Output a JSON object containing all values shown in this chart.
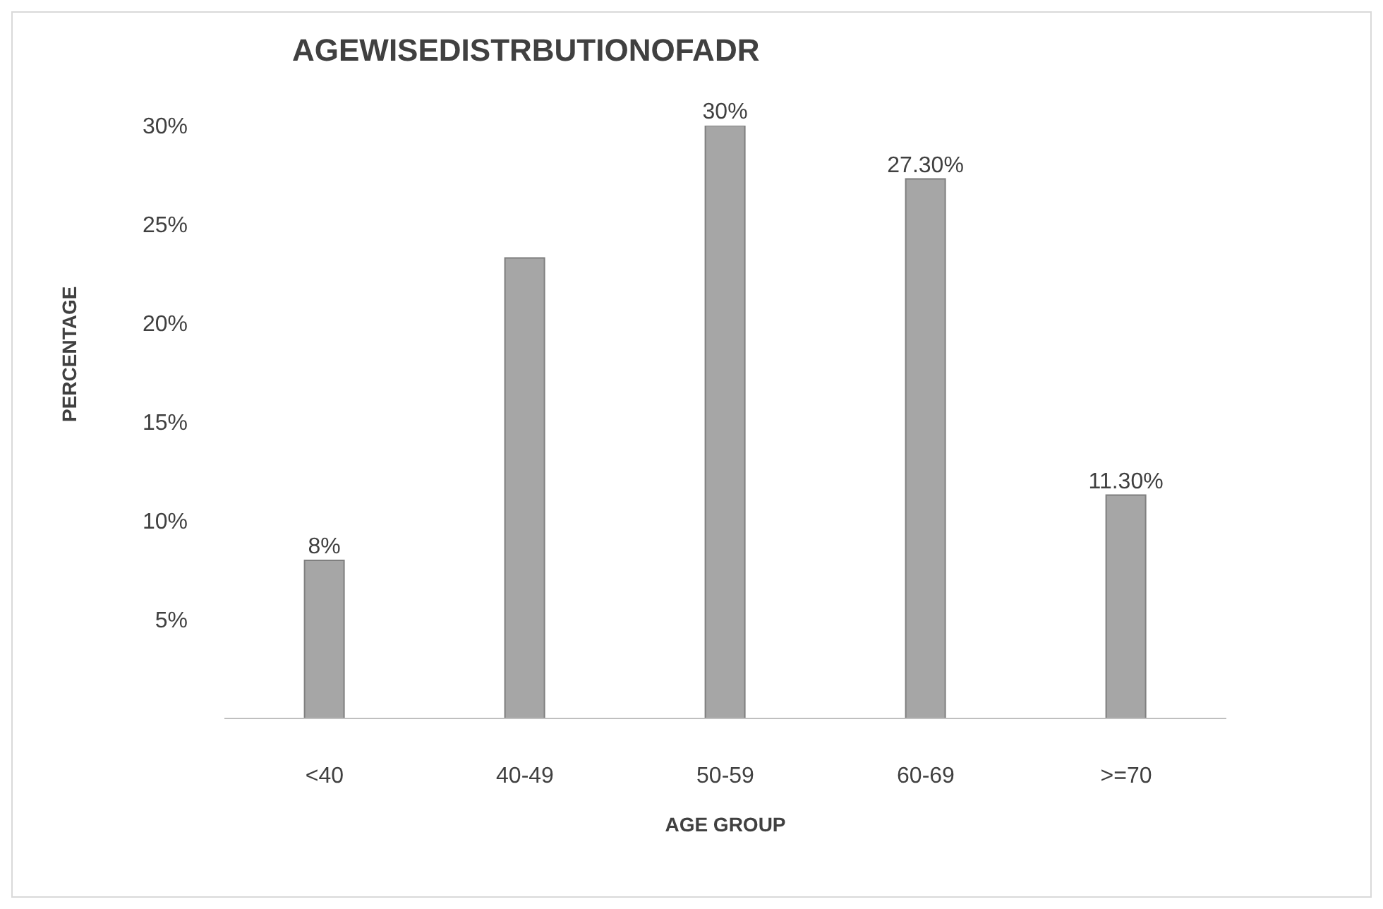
{
  "chart_data": {
    "type": "bar",
    "title": "AGEWISEDISTRBUTIONOFADR",
    "xlabel": "AGE GROUP",
    "ylabel": "PERCENTAGE",
    "categories": [
      "<40",
      "40-49",
      "50-59",
      "60-69",
      ">=70"
    ],
    "values": [
      8,
      23.3,
      30,
      27.3,
      11.3
    ],
    "value_labels": [
      "8%",
      null,
      "30%",
      "27.30%",
      "11.30%"
    ],
    "color": "#a6a6a6",
    "ylim": [
      0,
      30
    ],
    "yticks": [
      {
        "value": 5,
        "label": "5%"
      },
      {
        "value": 10,
        "label": "10%"
      },
      {
        "value": 15,
        "label": "15%"
      },
      {
        "value": 20,
        "label": "20%"
      },
      {
        "value": 25,
        "label": "25%"
      },
      {
        "value": 30,
        "label": "30%"
      }
    ],
    "grid": false,
    "legend": false
  }
}
